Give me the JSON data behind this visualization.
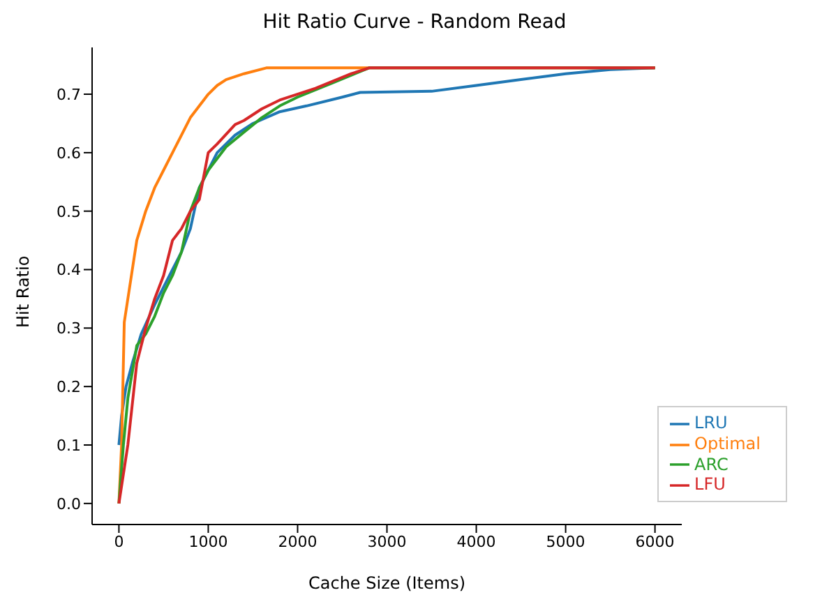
{
  "chart_data": {
    "type": "line",
    "title": "Hit Ratio Curve - Random Read",
    "xlabel": "Cache Size (Items)",
    "ylabel": "Hit Ratio",
    "xlim": [
      -300,
      6300
    ],
    "ylim": [
      -0.036,
      0.78
    ],
    "xticks": [
      0,
      1000,
      2000,
      3000,
      4000,
      5000,
      6000
    ],
    "yticks": [
      {
        "value": 0,
        "label": "0.0"
      },
      {
        "value": 0.1,
        "label": "0.1"
      },
      {
        "value": 0.2,
        "label": "0.2"
      },
      {
        "value": 0.3,
        "label": "0.3"
      },
      {
        "value": 0.4,
        "label": "0.4"
      },
      {
        "value": 0.5,
        "label": "0.5"
      },
      {
        "value": 0.6,
        "label": "0.6"
      },
      {
        "value": 0.7,
        "label": "0.7"
      }
    ],
    "grid": false,
    "legend": "bottom right",
    "marker": "none",
    "line_style": "solid",
    "series": [
      {
        "name": "LRU",
        "color": "#1f77b4",
        "x": [
          0,
          30,
          80,
          150,
          250,
          400,
          500,
          600,
          700,
          800,
          900,
          1000,
          1100,
          1300,
          1500,
          1800,
          2100,
          2500,
          2700,
          3500,
          4000,
          4500,
          5000,
          5500,
          6000
        ],
        "values": [
          0.1,
          0.15,
          0.2,
          0.24,
          0.29,
          0.34,
          0.37,
          0.4,
          0.43,
          0.47,
          0.54,
          0.57,
          0.6,
          0.63,
          0.65,
          0.67,
          0.68,
          0.695,
          0.703,
          0.705,
          0.715,
          0.725,
          0.735,
          0.742,
          0.745
        ]
      },
      {
        "name": "Optimal",
        "color": "#ff7f0e",
        "x": [
          0,
          30,
          60,
          150,
          200,
          300,
          400,
          500,
          600,
          800,
          1000,
          1100,
          1200,
          1400,
          1650,
          6000
        ],
        "values": [
          0,
          0.1,
          0.31,
          0.4,
          0.45,
          0.5,
          0.54,
          0.57,
          0.6,
          0.66,
          0.7,
          0.715,
          0.725,
          0.735,
          0.745,
          0.745
        ]
      },
      {
        "name": "ARC",
        "color": "#2ca02c",
        "x": [
          0,
          50,
          100,
          200,
          300,
          400,
          500,
          600,
          700,
          800,
          900,
          1000,
          1200,
          1400,
          1600,
          1800,
          2000,
          2400,
          2800,
          6000
        ],
        "values": [
          0,
          0.1,
          0.18,
          0.27,
          0.29,
          0.32,
          0.36,
          0.39,
          0.43,
          0.5,
          0.54,
          0.57,
          0.61,
          0.635,
          0.66,
          0.68,
          0.695,
          0.72,
          0.745,
          0.745
        ]
      },
      {
        "name": "LFU",
        "color": "#d62728",
        "x": [
          0,
          100,
          200,
          300,
          400,
          500,
          600,
          700,
          800,
          900,
          1000,
          1100,
          1300,
          1400,
          1600,
          1800,
          2200,
          2600,
          2800,
          6000
        ],
        "values": [
          0,
          0.1,
          0.24,
          0.3,
          0.35,
          0.39,
          0.45,
          0.47,
          0.5,
          0.52,
          0.6,
          0.615,
          0.648,
          0.655,
          0.675,
          0.69,
          0.71,
          0.735,
          0.745,
          0.745
        ]
      }
    ]
  }
}
